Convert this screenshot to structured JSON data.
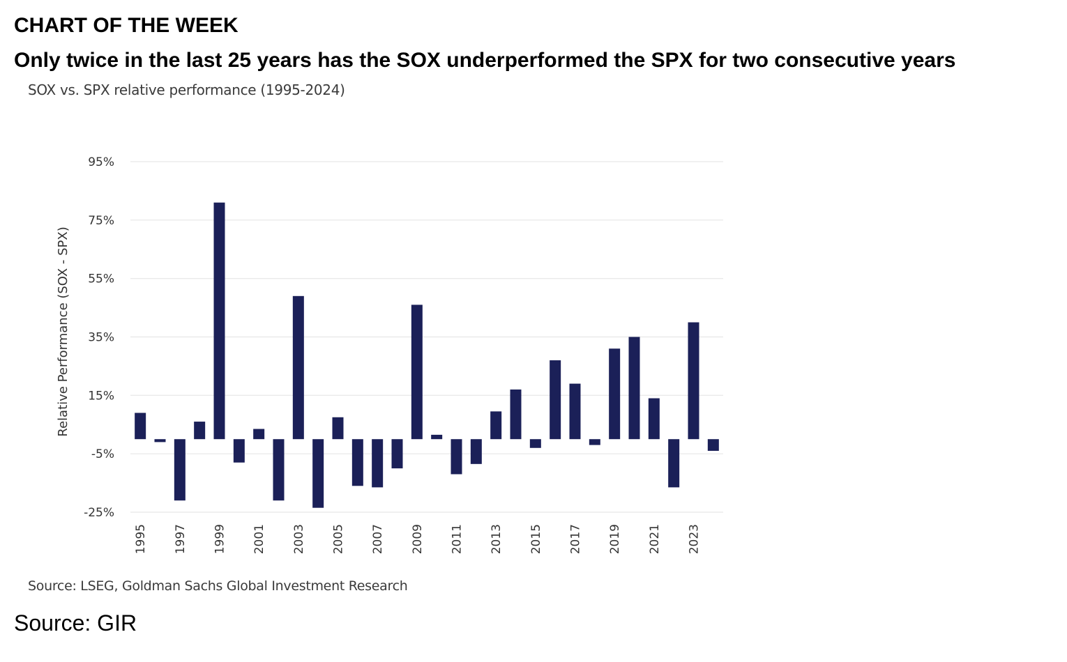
{
  "page": {
    "header_label": "CHART OF THE WEEK",
    "headline": "Only twice in the last 25 years has the SOX underperformed the SPX for two consecutive years",
    "footer_source": "Source: GIR"
  },
  "chart_data": {
    "type": "bar",
    "title": "SOX vs. SPX relative performance (1995-2024)",
    "ylabel": "Relative Performance (SOX - SPX)",
    "xlabel": "",
    "source": "Source: LSEG, Goldman Sachs Global Investment Research",
    "ylim": [
      -25,
      95
    ],
    "y_ticks": [
      95,
      75,
      55,
      35,
      15,
      -5,
      -25
    ],
    "y_tick_labels": [
      "95%",
      "75%",
      "55%",
      "35%",
      "15%",
      "-5%",
      "-25%"
    ],
    "categories": [
      "1995",
      "1996",
      "1997",
      "1998",
      "1999",
      "2000",
      "2001",
      "2002",
      "2003",
      "2004",
      "2005",
      "2006",
      "2007",
      "2008",
      "2009",
      "2010",
      "2011",
      "2012",
      "2013",
      "2014",
      "2015",
      "2016",
      "2017",
      "2018",
      "2019",
      "2020",
      "2021",
      "2022",
      "2023",
      "2024"
    ],
    "x_tick_labels": [
      "1995",
      "",
      "1997",
      "",
      "1999",
      "",
      "2001",
      "",
      "2003",
      "",
      "2005",
      "",
      "2007",
      "",
      "2009",
      "",
      "2011",
      "",
      "2013",
      "",
      "2015",
      "",
      "2017",
      "",
      "2019",
      "",
      "2021",
      "",
      "2023",
      ""
    ],
    "values": [
      9,
      -1,
      -21,
      6,
      81,
      -8,
      3.5,
      -21,
      49,
      -23.5,
      7.5,
      -16,
      -16.5,
      -10,
      46,
      1.5,
      -12,
      -8.5,
      9.5,
      17,
      -3,
      27,
      19,
      -2,
      31,
      35,
      14,
      -16.5,
      40,
      -4
    ],
    "bar_color": "#1b2058",
    "grid_color": "#e6e6e6",
    "grid": true,
    "legend": "none"
  }
}
